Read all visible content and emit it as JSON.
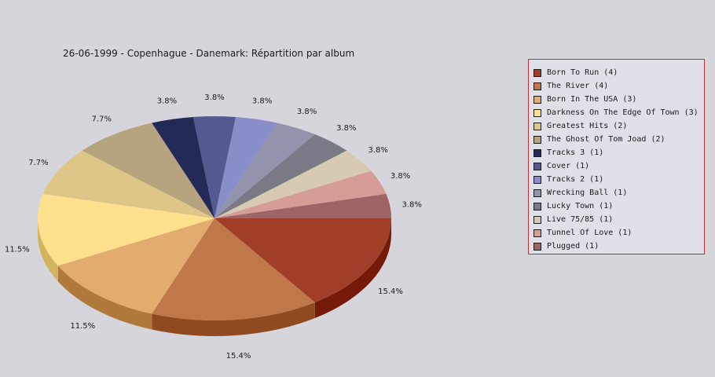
{
  "chart_data": {
    "type": "pie",
    "title": "26-06-1999 - Copenhague - Danemark:  Répartition par album",
    "slices": [
      {
        "label": "Born To Run (4)",
        "value": 4,
        "pct_label": "15.4%",
        "color": "#a13e28",
        "side": "#751a08"
      },
      {
        "label": "The River (4)",
        "value": 4,
        "pct_label": "15.4%",
        "color": "#c0774a",
        "side": "#8f4a1f"
      },
      {
        "label": "Born In The USA (3)",
        "value": 3,
        "pct_label": "11.5%",
        "color": "#e1ac6e",
        "side": "#b07a3c"
      },
      {
        "label": "Darkness On The Edge Of Town (3)",
        "value": 3,
        "pct_label": "11.5%",
        "color": "#ffe08c",
        "side": "#d2b45e"
      },
      {
        "label": "Greatest Hits (2)",
        "value": 2,
        "pct_label": "7.7%",
        "color": "#dec688",
        "side": "#b09a5c"
      },
      {
        "label": "The Ghost Of Tom Joad (2)",
        "value": 2,
        "pct_label": "7.7%",
        "color": "#b6a47e",
        "side": "#8a7a56"
      },
      {
        "label": "Tracks 3 (1)",
        "value": 1,
        "pct_label": "3.8%",
        "color": "#232a58",
        "side": "#141838"
      },
      {
        "label": "Cover (1)",
        "value": 1,
        "pct_label": "3.8%",
        "color": "#545a90",
        "side": "#363b66"
      },
      {
        "label": "Tracks 2 (1)",
        "value": 1,
        "pct_label": "3.8%",
        "color": "#8a8ec8",
        "side": "#60649a"
      },
      {
        "label": "Wrecking Ball (1)",
        "value": 1,
        "pct_label": "3.8%",
        "color": "#9294ae",
        "side": "#6a6c86"
      },
      {
        "label": "Lucky Town (1)",
        "value": 1,
        "pct_label": "3.8%",
        "color": "#7a7a86",
        "side": "#56565f"
      },
      {
        "label": "Live 75/85 (1)",
        "value": 1,
        "pct_label": "3.8%",
        "color": "#d6cab0",
        "side": "#aa9e84"
      },
      {
        "label": "Tunnel Of Love (1)",
        "value": 1,
        "pct_label": "3.8%",
        "color": "#d69c96",
        "side": "#aa706a"
      },
      {
        "label": "Plugged (1)",
        "value": 1,
        "pct_label": "3.8%",
        "color": "#9e6466",
        "side": "#74404a"
      }
    ]
  }
}
